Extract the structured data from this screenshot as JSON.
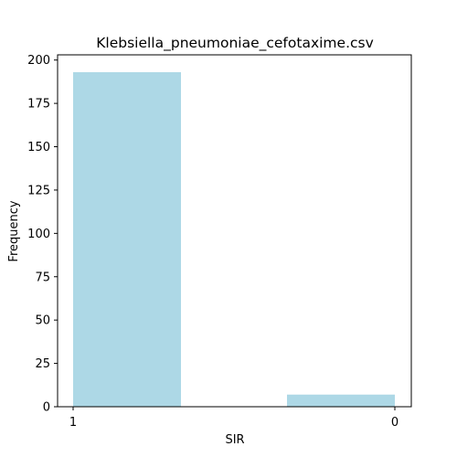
{
  "chart_data": {
    "type": "bar",
    "title": "Klebsiella_pneumoniae_cefotaxime.csv",
    "xlabel": "SIR",
    "ylabel": "Frequency",
    "categories": [
      "1",
      "0"
    ],
    "values": [
      193,
      7
    ],
    "ylim": [
      0,
      203
    ],
    "yticks": [
      0,
      25,
      50,
      75,
      100,
      125,
      150,
      175,
      200
    ],
    "bar_color": "#add8e6",
    "grid": false,
    "legend": "none"
  }
}
